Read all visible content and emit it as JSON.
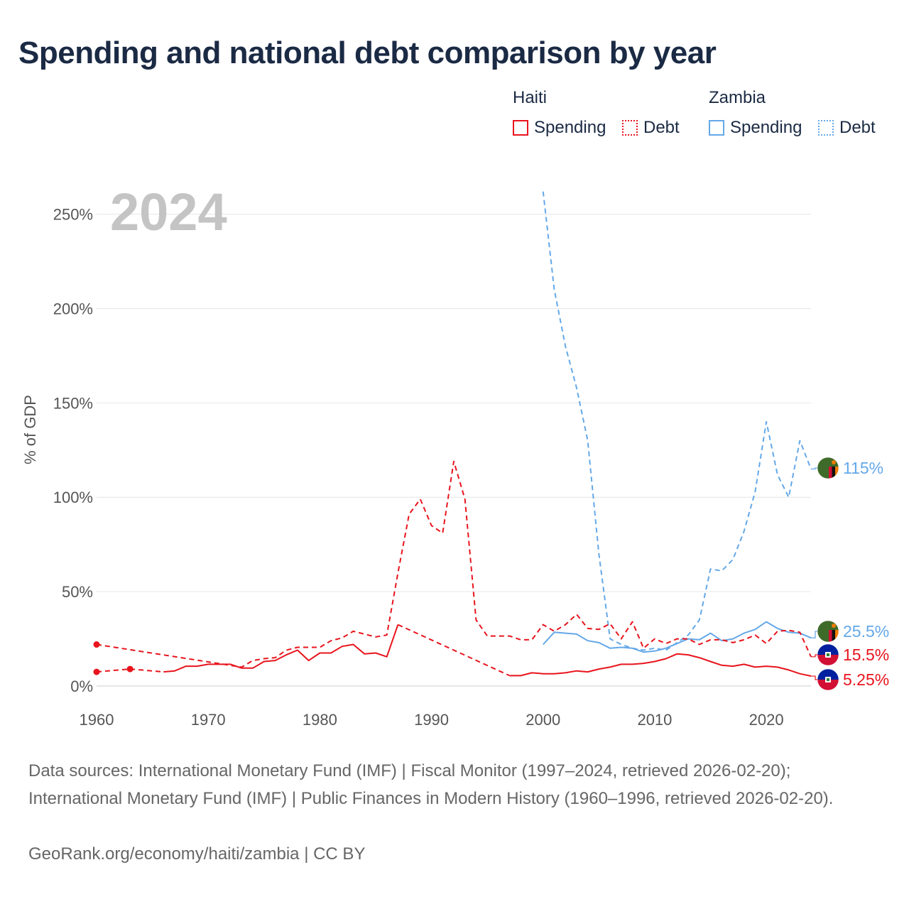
{
  "title": "Spending and national debt comparison by year",
  "year_label": "2024",
  "legend": {
    "groups": [
      {
        "name": "Haiti",
        "color": "#e8141d",
        "items": [
          {
            "label": "Spending",
            "style": "solid"
          },
          {
            "label": "Debt",
            "style": "dotted"
          }
        ]
      },
      {
        "name": "Zambia",
        "color": "#64a8e8",
        "items": [
          {
            "label": "Spending",
            "style": "solid"
          },
          {
            "label": "Debt",
            "style": "dotted"
          }
        ]
      }
    ]
  },
  "footer": {
    "sources": "Data sources: International Monetary Fund (IMF) | Fiscal Monitor (1997–2024, retrieved 2026-02-20); International Monetary Fund (IMF) | Public Finances in Modern History (1960–1996, retrieved 2026-02-20).",
    "credit": "GeoRank.org/economy/haiti/zambia | CC BY"
  },
  "chart_data": {
    "type": "line",
    "title": "Spending and national debt comparison by year",
    "xlabel": "",
    "ylabel": "% of GDP",
    "xlim": [
      1960,
      2024
    ],
    "ylim": [
      0,
      260
    ],
    "x_ticks": [
      1960,
      1970,
      1980,
      1990,
      2000,
      2010,
      2020
    ],
    "y_ticks": [
      0,
      50,
      100,
      150,
      200,
      250
    ],
    "y_tick_labels": [
      "0%",
      "50%",
      "100%",
      "150%",
      "200%",
      "250%"
    ],
    "grid": true,
    "series": [
      {
        "name": "Zambia Debt",
        "country": "Zambia",
        "measure": "Debt",
        "color": "#64a8e8",
        "dash": "dashed",
        "points": [
          [
            2000,
            262
          ],
          [
            2001,
            210
          ],
          [
            2002,
            180
          ],
          [
            2003,
            158
          ],
          [
            2004,
            130
          ],
          [
            2005,
            70
          ],
          [
            2006,
            25
          ],
          [
            2007,
            22
          ],
          [
            2008,
            20
          ],
          [
            2009,
            19
          ],
          [
            2010,
            20
          ],
          [
            2011,
            19
          ],
          [
            2012,
            23
          ],
          [
            2013,
            27
          ],
          [
            2014,
            35
          ],
          [
            2015,
            62
          ],
          [
            2016,
            61
          ],
          [
            2017,
            67
          ],
          [
            2018,
            82
          ],
          [
            2019,
            103
          ],
          [
            2020,
            140
          ],
          [
            2021,
            112
          ],
          [
            2022,
            100
          ],
          [
            2023,
            130
          ],
          [
            2024,
            115
          ]
        ],
        "end_label": "115%",
        "end_value": 115
      },
      {
        "name": "Zambia Spending",
        "country": "Zambia",
        "measure": "Spending",
        "color": "#64a8e8",
        "dash": "solid",
        "points": [
          [
            2000,
            22
          ],
          [
            2001,
            28.5
          ],
          [
            2002,
            28
          ],
          [
            2003,
            27.5
          ],
          [
            2004,
            24
          ],
          [
            2005,
            23
          ],
          [
            2006,
            20
          ],
          [
            2007,
            20.5
          ],
          [
            2008,
            20
          ],
          [
            2009,
            18
          ],
          [
            2010,
            18.5
          ],
          [
            2011,
            20
          ],
          [
            2012,
            22.5
          ],
          [
            2013,
            25
          ],
          [
            2014,
            24.5
          ],
          [
            2015,
            28
          ],
          [
            2016,
            24
          ],
          [
            2017,
            25
          ],
          [
            2018,
            28
          ],
          [
            2019,
            30
          ],
          [
            2020,
            34
          ],
          [
            2021,
            30.5
          ],
          [
            2022,
            28.5
          ],
          [
            2023,
            28
          ],
          [
            2024,
            25.5
          ]
        ],
        "end_label": "25.5%",
        "end_value": 25.5
      },
      {
        "name": "Haiti Debt",
        "country": "Haiti",
        "measure": "Debt",
        "color": "#e8141d",
        "dash": "dashed",
        "points": [
          [
            1960,
            22
          ],
          [
            1973,
            10
          ],
          [
            1974,
            13.5
          ],
          [
            1975,
            14.5
          ],
          [
            1976,
            15
          ],
          [
            1977,
            19
          ],
          [
            1978,
            20.5
          ],
          [
            1979,
            20.5
          ],
          [
            1980,
            20.5
          ],
          [
            1981,
            24
          ],
          [
            1982,
            25.5
          ],
          [
            1983,
            29
          ],
          [
            1984,
            27.5
          ],
          [
            1985,
            26
          ],
          [
            1986,
            27
          ],
          [
            1987,
            60
          ],
          [
            1988,
            91
          ],
          [
            1989,
            99
          ],
          [
            1990,
            85
          ],
          [
            1991,
            81
          ],
          [
            1992,
            119
          ],
          [
            1993,
            99
          ],
          [
            1994,
            35
          ],
          [
            1995,
            26.5
          ],
          [
            1996,
            26.5
          ],
          [
            1997,
            26.5
          ],
          [
            1998,
            24.5
          ],
          [
            1999,
            24.5
          ],
          [
            2000,
            32.5
          ],
          [
            2001,
            29
          ],
          [
            2002,
            32.5
          ],
          [
            2003,
            38
          ],
          [
            2004,
            30.5
          ],
          [
            2005,
            30
          ],
          [
            2006,
            33
          ],
          [
            2007,
            25
          ],
          [
            2008,
            34
          ],
          [
            2009,
            20
          ],
          [
            2010,
            25
          ],
          [
            2011,
            22.5
          ],
          [
            2012,
            25
          ],
          [
            2013,
            25
          ],
          [
            2014,
            22
          ],
          [
            2015,
            24.5
          ],
          [
            2016,
            24.5
          ],
          [
            2017,
            23
          ],
          [
            2018,
            24.5
          ],
          [
            2019,
            27
          ],
          [
            2020,
            22.5
          ],
          [
            2021,
            29
          ],
          [
            2022,
            29.5
          ],
          [
            2023,
            28.5
          ],
          [
            2024,
            15.5
          ]
        ],
        "markers": [
          [
            1960,
            22
          ]
        ],
        "end_label": "15.5%",
        "end_value": 15.5
      },
      {
        "name": "Haiti Spending",
        "country": "Haiti",
        "measure": "Spending",
        "color": "#e8141d",
        "dash": "solid",
        "points": [
          [
            1960,
            7.5
          ],
          [
            1963,
            9
          ],
          [
            1966,
            7.5
          ],
          [
            1967,
            8
          ],
          [
            1968,
            10.5
          ],
          [
            1969,
            10.5
          ],
          [
            1970,
            11.5
          ],
          [
            1971,
            11.5
          ],
          [
            1972,
            11.5
          ],
          [
            1973,
            9.5
          ],
          [
            1974,
            9.5
          ],
          [
            1975,
            13
          ],
          [
            1976,
            13.5
          ],
          [
            1977,
            16.5
          ],
          [
            1978,
            19
          ],
          [
            1979,
            13.5
          ],
          [
            1980,
            17.5
          ],
          [
            1981,
            17.5
          ],
          [
            1982,
            21
          ],
          [
            1983,
            22
          ],
          [
            1984,
            17
          ],
          [
            1985,
            17.5
          ],
          [
            1986,
            15.5
          ],
          [
            1987,
            32.5
          ],
          [
            1997,
            5.5
          ],
          [
            1998,
            5.5
          ],
          [
            1999,
            7
          ],
          [
            2000,
            6.5
          ],
          [
            2001,
            6.5
          ],
          [
            2002,
            7
          ],
          [
            2003,
            8
          ],
          [
            2004,
            7.5
          ],
          [
            2005,
            9
          ],
          [
            2006,
            10
          ],
          [
            2007,
            11.5
          ],
          [
            2008,
            11.5
          ],
          [
            2009,
            12
          ],
          [
            2010,
            13
          ],
          [
            2011,
            14.5
          ],
          [
            2012,
            17
          ],
          [
            2013,
            16.5
          ],
          [
            2014,
            15
          ],
          [
            2015,
            13
          ],
          [
            2016,
            11
          ],
          [
            2017,
            10.5
          ],
          [
            2018,
            11.5
          ],
          [
            2019,
            10
          ],
          [
            2020,
            10.5
          ],
          [
            2021,
            10
          ],
          [
            2022,
            8.5
          ],
          [
            2023,
            6.5
          ],
          [
            2024,
            5.25
          ]
        ],
        "gap_segments": [
          [
            1960,
            1963
          ],
          [
            1963,
            1966
          ],
          [
            1987,
            1997
          ]
        ],
        "markers": [
          [
            1960,
            7.5
          ],
          [
            1963,
            9
          ]
        ],
        "end_label": "5.25%",
        "end_value": 5.25
      }
    ],
    "end_labels": [
      {
        "text": "115%",
        "color": "#64a8e8",
        "flag": "Zambia"
      },
      {
        "text": "25.5%",
        "color": "#64a8e8",
        "flag": "Zambia"
      },
      {
        "text": "15.5%",
        "color": "#e8141d",
        "flag": "Haiti"
      },
      {
        "text": "5.25%",
        "color": "#e8141d",
        "flag": "Haiti"
      }
    ]
  }
}
